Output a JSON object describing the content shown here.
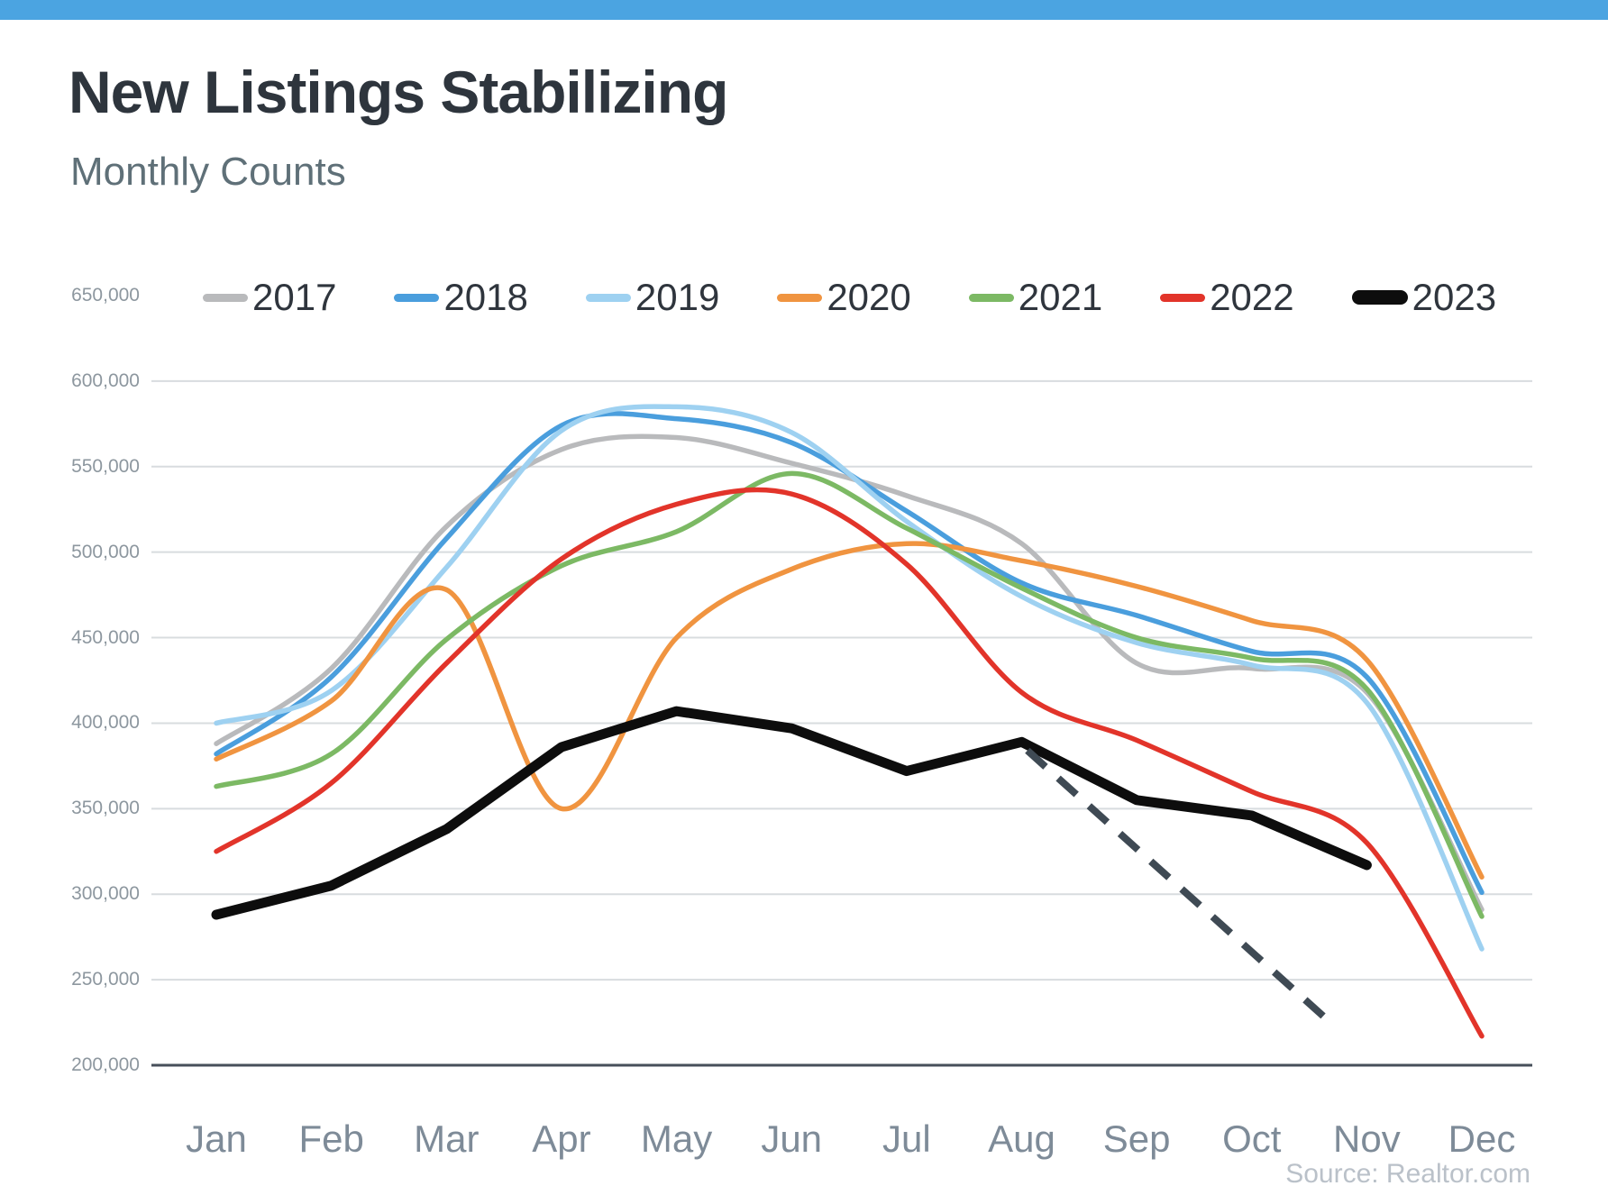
{
  "page": {
    "title": "New Listings Stabilizing",
    "subtitle": "Monthly Counts",
    "source": "Source: Realtor.com"
  },
  "colors": {
    "top_bar": "#4BA4E1",
    "grid": "#d8dcdf",
    "axis_line": "#474f5a",
    "title_text": "#2e353d",
    "subtitle_text": "#5f7078",
    "y_label_text": "#8d979f",
    "x_label_text": "#7e8b98",
    "source_text": "#bac1c9",
    "legend_text": "#2f353d"
  },
  "chart_data": {
    "type": "line",
    "title": "New Listings Stabilizing",
    "subtitle": "Monthly Counts",
    "source": "Source: Realtor.com",
    "x_categories": [
      "Jan",
      "Feb",
      "Mar",
      "Apr",
      "May",
      "Jun",
      "Jul",
      "Aug",
      "Sep",
      "Oct",
      "Nov",
      "Dec"
    ],
    "y_ticks": [
      "650,000",
      "600,000",
      "550,000",
      "500,000",
      "450,000",
      "400,000",
      "350,000",
      "300,000",
      "250,000",
      "200,000"
    ],
    "ylim": [
      200000,
      650000
    ],
    "grid": "horizontal-only",
    "legend_position": "top",
    "series": [
      {
        "name": "2017",
        "color": "#b9babc",
        "width": 5.5,
        "smooth": true,
        "values": [
          388000,
          432000,
          515000,
          560000,
          567000,
          552000,
          533000,
          505000,
          435000,
          432000,
          418000,
          291000
        ]
      },
      {
        "name": "2018",
        "color": "#4a9edd",
        "width": 5.5,
        "smooth": true,
        "values": [
          382000,
          427000,
          508000,
          574000,
          578000,
          564000,
          524000,
          482000,
          463000,
          442000,
          427000,
          301000
        ]
      },
      {
        "name": "2019",
        "color": "#9ed1f1",
        "width": 5.5,
        "smooth": true,
        "values": [
          400000,
          419000,
          491000,
          571000,
          585000,
          570000,
          518000,
          474000,
          447000,
          434000,
          412000,
          268000
        ]
      },
      {
        "name": "2020",
        "color": "#f09440",
        "width": 5.5,
        "smooth": true,
        "values": [
          379000,
          413000,
          478000,
          350000,
          450000,
          490000,
          505000,
          495000,
          480000,
          460000,
          437000,
          310000
        ]
      },
      {
        "name": "2021",
        "color": "#7cb964",
        "width": 5.5,
        "smooth": true,
        "values": [
          363000,
          382000,
          449000,
          492000,
          512000,
          546000,
          514000,
          479000,
          450000,
          438000,
          420000,
          287000
        ]
      },
      {
        "name": "2022",
        "color": "#e2342a",
        "width": 5.5,
        "smooth": true,
        "values": [
          325000,
          365000,
          435000,
          496000,
          528000,
          534000,
          493000,
          418000,
          390000,
          360000,
          330000,
          217000
        ]
      },
      {
        "name": "2023",
        "color": "#0d0d0d",
        "width": 11,
        "smooth": false,
        "values": [
          288000,
          305000,
          338000,
          386000,
          407000,
          397000,
          372000,
          389000,
          355000,
          346000,
          317000,
          null
        ]
      }
    ],
    "projection": {
      "name": "2023-dashed-projection",
      "color": "#3f4a54",
      "style": "dashed",
      "month_index_range": [
        7.05,
        9.65
      ],
      "values": [
        384000,
        227000
      ]
    }
  }
}
